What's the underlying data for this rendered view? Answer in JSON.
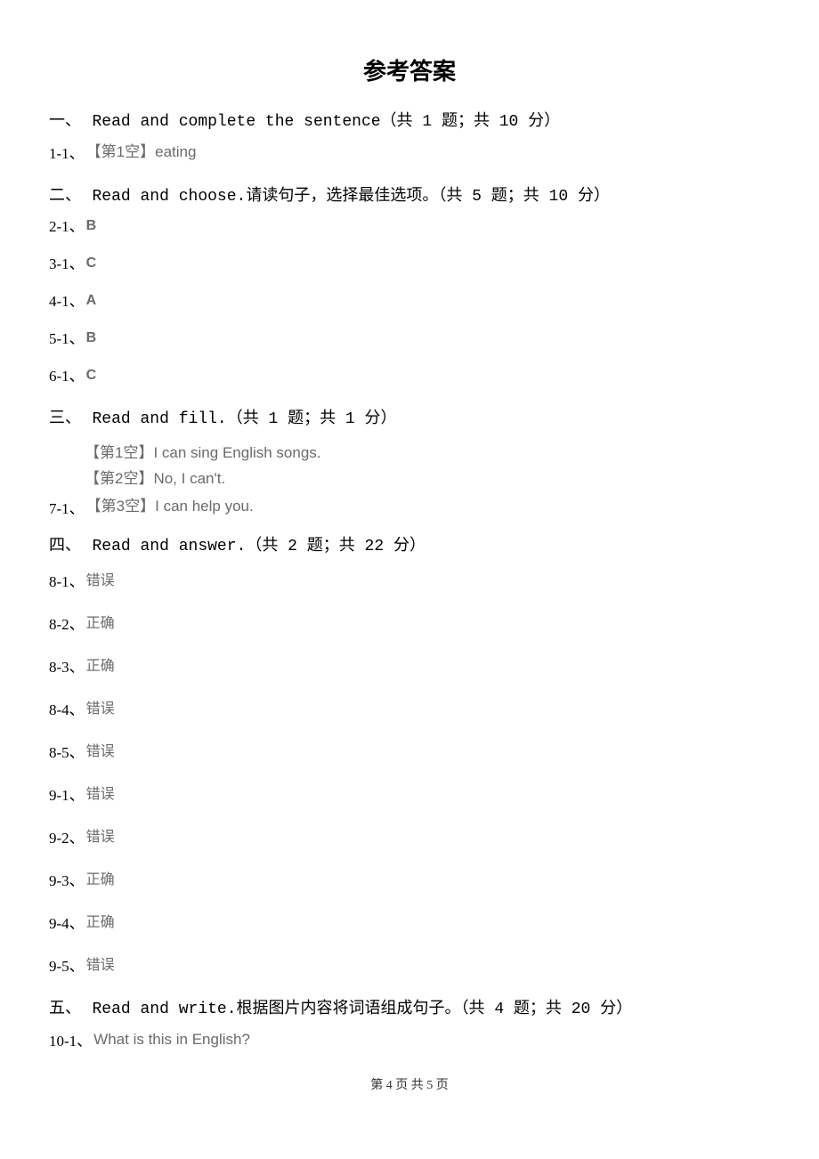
{
  "title": "参考答案",
  "sections": {
    "s1": {
      "num": "一、",
      "text": "Read and complete the sentence（共 1 题；共 10 分）"
    },
    "s2": {
      "num": "二、",
      "text": "Read and choose.请读句子，选择最佳选项。（共 5 题；共 10 分）"
    },
    "s3": {
      "num": "三、",
      "text": "Read and fill.（共 1 题；共 1 分）"
    },
    "s4": {
      "num": "四、",
      "text": "Read and answer.（共 2 题；共 22 分）"
    },
    "s5": {
      "num": "五、",
      "text": "Read and write.根据图片内容将词语组成句子。（共 4 题；共 20 分）"
    }
  },
  "answers": {
    "a1_1": {
      "idx": "1-1、",
      "val": "【第1空】eating"
    },
    "a2_1": {
      "idx": "2-1、",
      "val": "B"
    },
    "a3_1": {
      "idx": "3-1、",
      "val": "C"
    },
    "a4_1": {
      "idx": "4-1、",
      "val": "A"
    },
    "a5_1": {
      "idx": "5-1、",
      "val": "B"
    },
    "a6_1": {
      "idx": "6-1、",
      "val": "C"
    },
    "a7_1": {
      "idx": "7-1、",
      "lines": {
        "l1": "【第1空】I can sing English songs.",
        "l2": "【第2空】No, I can't.",
        "l3": "【第3空】I can help you."
      }
    },
    "a8_1": {
      "idx": "8-1、",
      "val": "错误"
    },
    "a8_2": {
      "idx": "8-2、",
      "val": "正确"
    },
    "a8_3": {
      "idx": "8-3、",
      "val": "正确"
    },
    "a8_4": {
      "idx": "8-4、",
      "val": "错误"
    },
    "a8_5": {
      "idx": "8-5、",
      "val": "错误"
    },
    "a9_1": {
      "idx": "9-1、",
      "val": "错误"
    },
    "a9_2": {
      "idx": "9-2、",
      "val": "错误"
    },
    "a9_3": {
      "idx": "9-3、",
      "val": "正确"
    },
    "a9_4": {
      "idx": "9-4、",
      "val": "正确"
    },
    "a9_5": {
      "idx": "9-5、",
      "val": "错误"
    },
    "a10_1": {
      "idx": "10-1、",
      "val": "What is this in English?"
    }
  },
  "footer": "第 4 页 共 5 页"
}
